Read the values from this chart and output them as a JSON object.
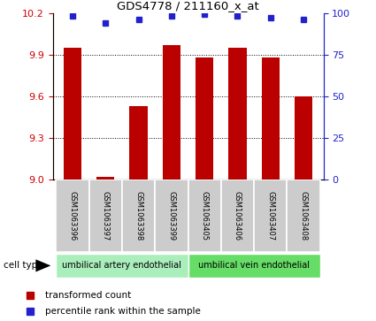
{
  "title": "GDS4778 / 211160_x_at",
  "samples": [
    "GSM1063396",
    "GSM1063397",
    "GSM1063398",
    "GSM1063399",
    "GSM1063405",
    "GSM1063406",
    "GSM1063407",
    "GSM1063408"
  ],
  "bar_values": [
    9.95,
    9.02,
    9.53,
    9.97,
    9.88,
    9.95,
    9.88,
    9.6
  ],
  "percentile_values": [
    98,
    94,
    96,
    98,
    99,
    98,
    97,
    96
  ],
  "ylim_left": [
    9.0,
    10.2
  ],
  "ylim_right": [
    0,
    100
  ],
  "yticks_left": [
    9.0,
    9.3,
    9.6,
    9.9,
    10.2
  ],
  "yticks_right": [
    0,
    25,
    50,
    75,
    100
  ],
  "bar_color": "#BB0000",
  "percentile_color": "#2222CC",
  "cell_type_colors": [
    "#AAEEBB",
    "#66DD66"
  ],
  "cell_type_labels": [
    "umbilical artery endothelial",
    "umbilical vein endothelial"
  ],
  "legend_labels": [
    "transformed count",
    "percentile rank within the sample"
  ],
  "grid_linestyle": "dotted",
  "left_tick_color": "#CC0000",
  "right_tick_color": "#2222CC",
  "cell_type_label": "cell type",
  "bg_color": "#FFFFFF"
}
